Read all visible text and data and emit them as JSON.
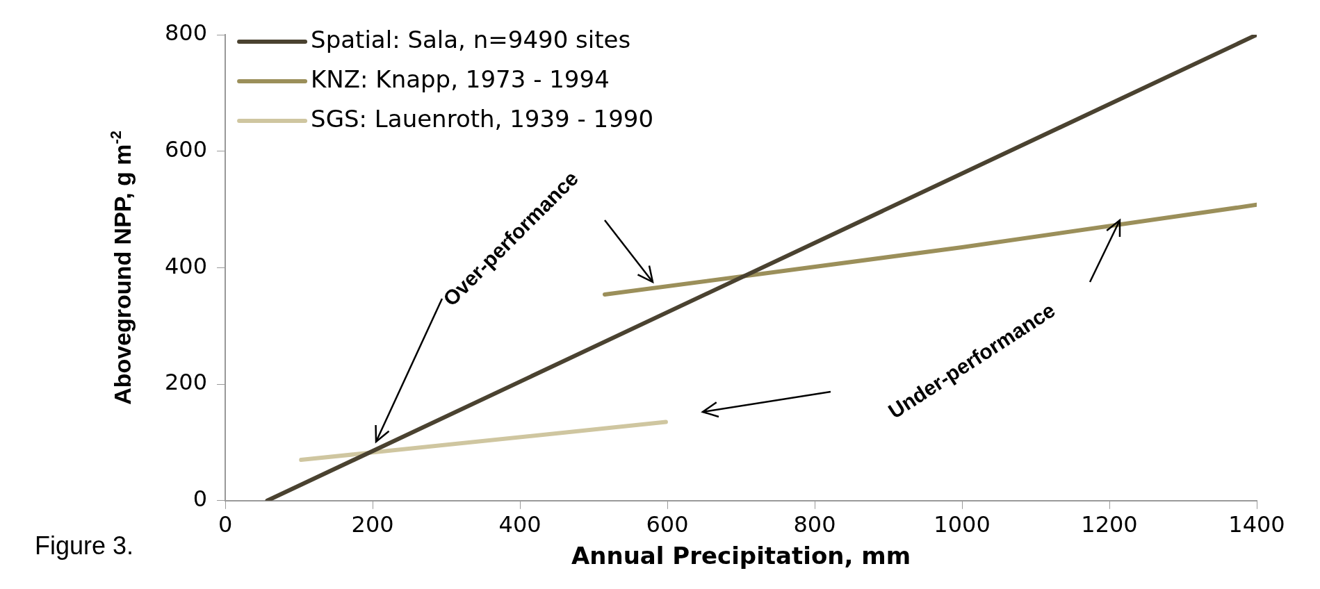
{
  "chart_data": {
    "type": "line",
    "xlabel": "Annual Precipitation, mm",
    "ylabel": "Aboveground NPP, g m$^{-2}$",
    "xlim": [
      0,
      1400
    ],
    "xticks": [
      0,
      200,
      400,
      600,
      800,
      1000,
      1200,
      1400
    ],
    "ylim": [
      0,
      800
    ],
    "yticks": [
      0,
      200,
      400,
      600,
      800
    ],
    "grid": false,
    "legend": "top left",
    "marker": "none",
    "line_style": "solid",
    "series": [
      {
        "name": "Spatial: Sala, n=9490 sites",
        "color": "#4a4230",
        "x": [
          57,
          1400
        ],
        "values": [
          0,
          800
        ]
      },
      {
        "name": "KNZ: Knapp, 1973 - 1994",
        "color": "#9b8f5a",
        "x": [
          515,
          1000,
          1400
        ],
        "values": [
          354,
          435,
          508
        ]
      },
      {
        "name": "SGS: Lauenroth, 1939 - 1990",
        "color": "#cfc6a0",
        "x": [
          103,
          598
        ],
        "values": [
          70,
          135
        ]
      }
    ],
    "annotations": [
      "Over-performance",
      "Under-performance",
      "Figure 3."
    ]
  }
}
